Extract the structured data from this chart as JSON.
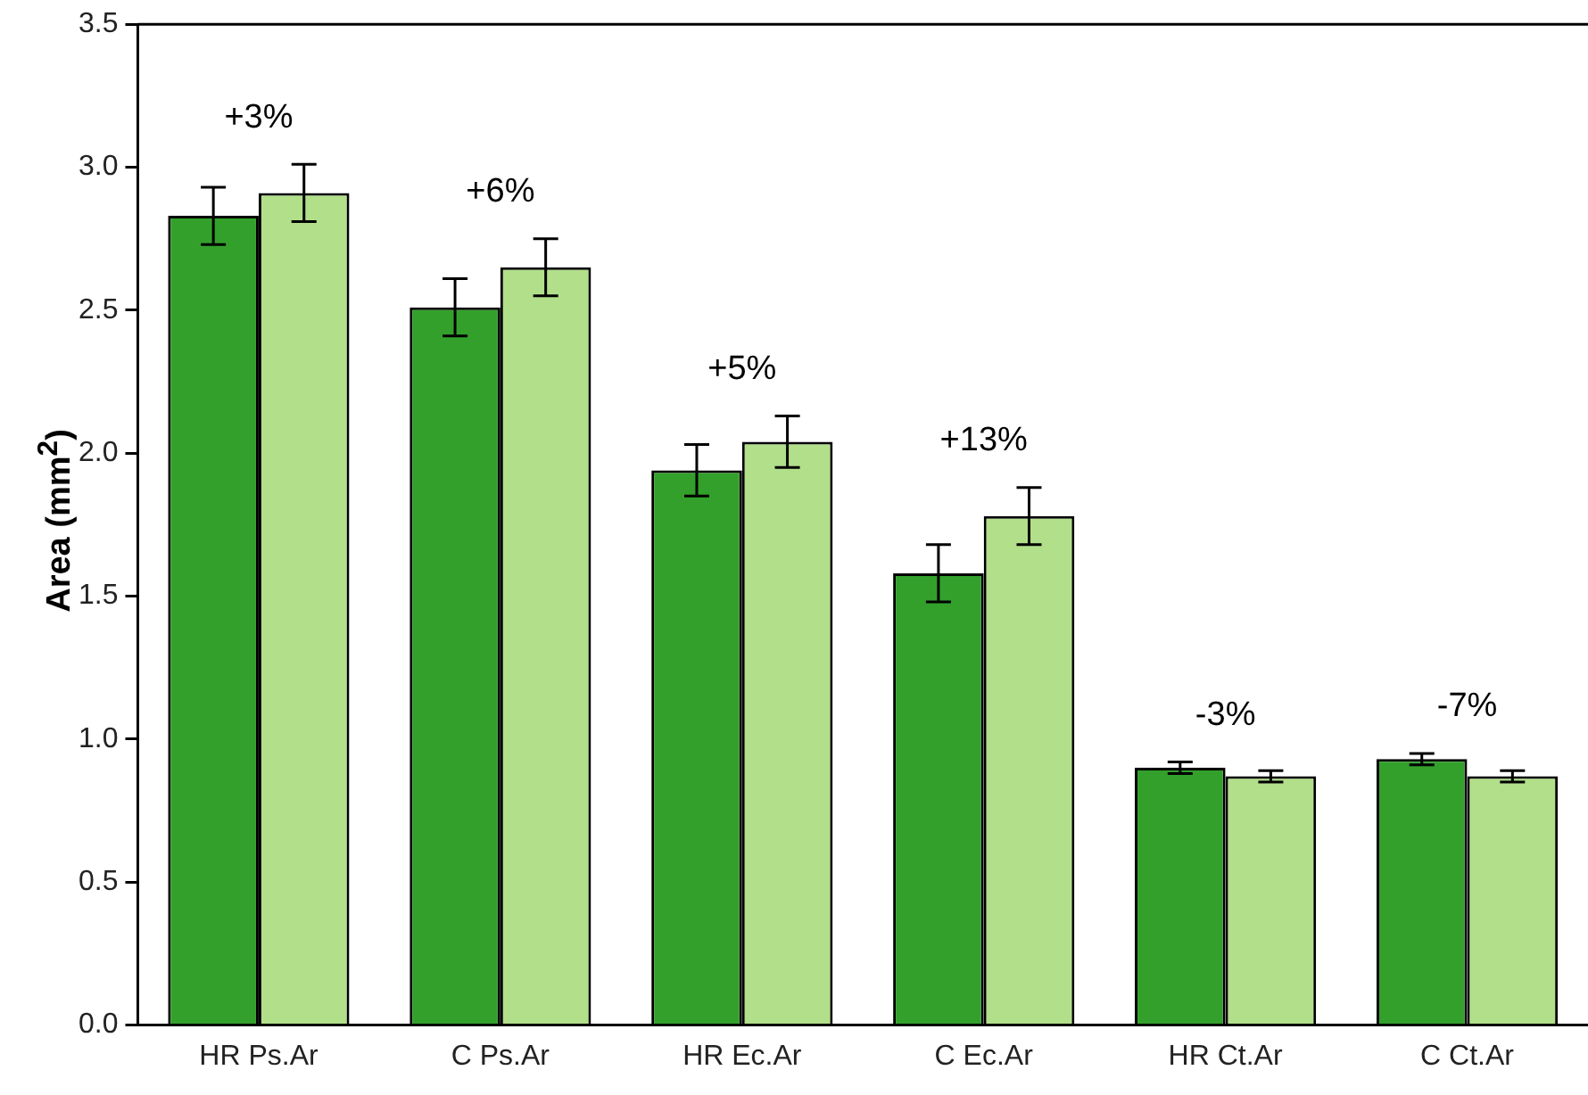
{
  "chart_data": {
    "type": "bar",
    "ylabel": "Area (mm$^{2}$)",
    "categories": [
      "HR Ps.Ar",
      "C Ps.Ar",
      "HR Ec.Ar",
      "C Ec.Ar",
      "HR Ct.Ar",
      "C Ct.Ar"
    ],
    "series": [
      {
        "color": "#33a02c",
        "values": [
          2.83,
          2.51,
          1.94,
          1.58,
          0.9,
          0.93
        ],
        "errors": [
          0.1,
          0.1,
          0.09,
          0.1,
          0.02,
          0.02
        ]
      },
      {
        "color": "#b2df8a",
        "values": [
          2.91,
          2.65,
          2.04,
          1.78,
          0.87,
          0.87
        ],
        "errors": [
          0.1,
          0.1,
          0.09,
          0.1,
          0.02,
          0.02
        ]
      }
    ],
    "ylim": [
      0,
      3.5
    ],
    "yticks": [
      {
        "value": 0,
        "label": "0.0"
      },
      {
        "value": 0.5,
        "label": "0.5"
      },
      {
        "value": 1,
        "label": "1.0"
      },
      {
        "value": 1.5,
        "label": "1.5"
      },
      {
        "value": 2,
        "label": "2.0"
      },
      {
        "value": 2.5,
        "label": "2.5"
      },
      {
        "value": 3,
        "label": "3.0"
      },
      {
        "value": 3.5,
        "label": "3.5"
      }
    ],
    "grid": false,
    "legend": false,
    "annotations": [
      "+3%",
      "+6%",
      "+5%",
      "+13%",
      "-3%",
      "-7%"
    ]
  }
}
